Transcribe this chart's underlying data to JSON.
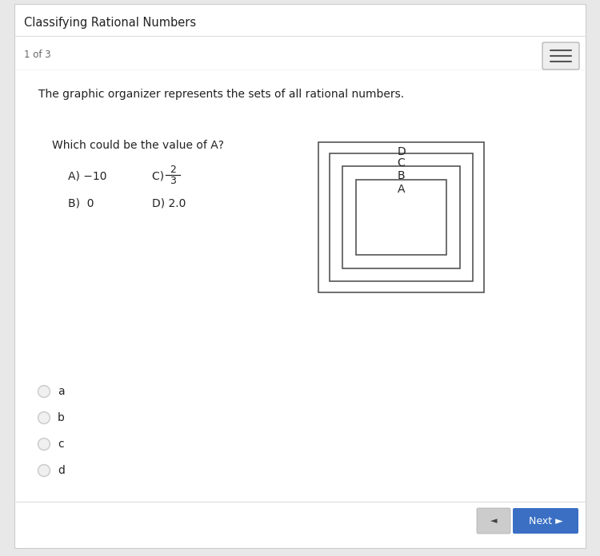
{
  "title": "Classifying Rational Numbers",
  "page_info": "1 of 3",
  "question_text": "The graphic organizer represents the sets of all rational numbers.",
  "sub_question": "Which could be the value of A?",
  "opt_a": "A) −10",
  "opt_b": "B)  0",
  "opt_c_prefix": "C) ",
  "opt_d": "D) 2.0",
  "frac_num": "2",
  "frac_den": "3",
  "answer_choices": [
    "a",
    "b",
    "c",
    "d"
  ],
  "bg_color": "#e8e8e8",
  "card_color": "#ffffff",
  "box_edge_color": "#555555",
  "text_color": "#222222",
  "next_btn_color": "#3a6fc4",
  "nav_btn_color": "#bbbbbb",
  "title_fontsize": 10.5,
  "body_fontsize": 10,
  "small_fontsize": 9
}
